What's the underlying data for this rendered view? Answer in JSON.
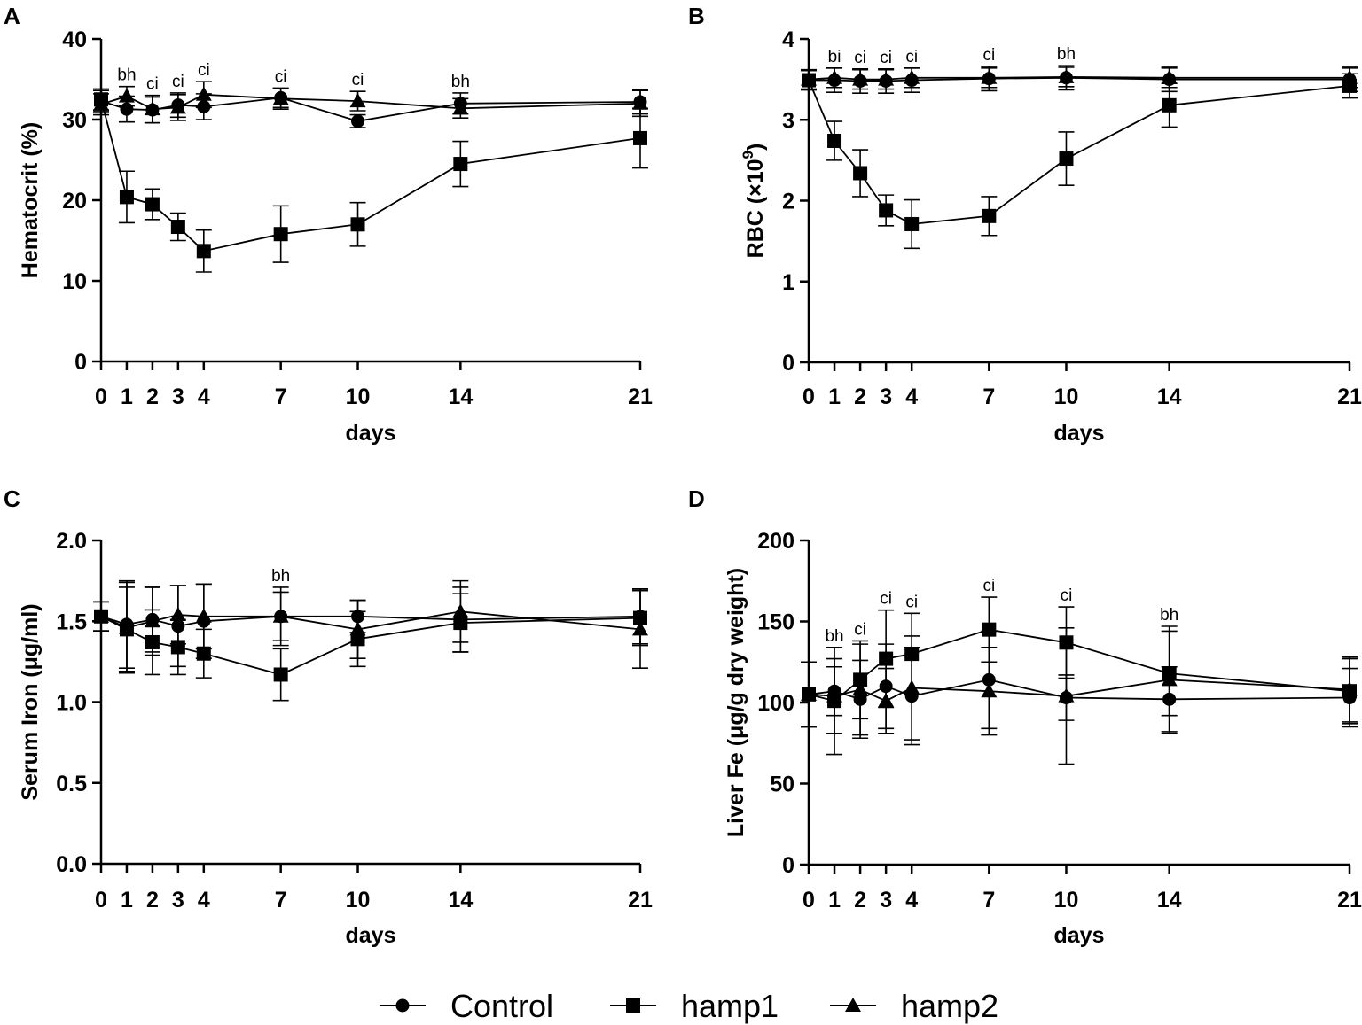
{
  "legend": [
    {
      "name": "Control",
      "marker": "circle"
    },
    {
      "name": "hamp1",
      "marker": "square"
    },
    {
      "name": "hamp2",
      "marker": "triangle"
    }
  ],
  "chart_data": [
    {
      "type": "line",
      "panel": "A",
      "xlabel": "days",
      "ylabel": "Hematocrit (%)",
      "ylim": [
        0,
        40
      ],
      "yticks": [
        "0",
        "10",
        "20",
        "30",
        "40"
      ],
      "x": [
        0,
        1,
        2,
        3,
        4,
        7,
        10,
        14,
        21
      ],
      "xticks": [
        "0",
        "1",
        "2",
        "3",
        "4",
        "7",
        "10",
        "14",
        "21"
      ],
      "series": [
        {
          "name": "Control",
          "marker": "circle",
          "values": [
            32.3,
            31.3,
            31.2,
            31.8,
            31.6,
            32.7,
            29.8,
            32.0,
            32.2
          ],
          "errors": [
            1.3,
            1.6,
            1.6,
            1.5,
            1.6,
            1.2,
            0.8,
            1.3,
            1.5
          ]
        },
        {
          "name": "hamp1",
          "marker": "square",
          "values": [
            32.5,
            20.4,
            19.5,
            16.7,
            13.7,
            15.8,
            17.0,
            24.5,
            27.7
          ],
          "errors": [
            1.3,
            3.2,
            1.9,
            1.7,
            2.6,
            3.5,
            2.7,
            2.8,
            3.7
          ]
        },
        {
          "name": "hamp2",
          "marker": "triangle",
          "values": [
            31.9,
            32.9,
            31.3,
            31.5,
            33.1,
            32.6,
            32.3,
            31.4,
            32.0
          ],
          "errors": [
            1.3,
            1.2,
            1.7,
            1.6,
            1.6,
            1.3,
            1.2,
            1.2,
            1.6
          ]
        }
      ],
      "annotations": [
        {
          "x": 1,
          "text": "bh"
        },
        {
          "x": 2,
          "text": "ci"
        },
        {
          "x": 3,
          "text": "ci"
        },
        {
          "x": 4,
          "text": "ci"
        },
        {
          "x": 7,
          "text": "ci"
        },
        {
          "x": 10,
          "text": "ci"
        },
        {
          "x": 14,
          "text": "bh"
        }
      ]
    },
    {
      "type": "line",
      "panel": "B",
      "xlabel": "days",
      "ylabel": "RBC (×10⁹)",
      "ylabel_parts": [
        "RBC (×10",
        "9",
        ")"
      ],
      "ylim": [
        0,
        4
      ],
      "yticks": [
        "0",
        "1",
        "2",
        "3",
        "4"
      ],
      "x": [
        0,
        1,
        2,
        3,
        4,
        7,
        10,
        14,
        21
      ],
      "xticks": [
        "0",
        "1",
        "2",
        "3",
        "4",
        "7",
        "10",
        "14",
        "21"
      ],
      "series": [
        {
          "name": "Control",
          "marker": "circle",
          "values": [
            3.49,
            3.49,
            3.48,
            3.48,
            3.49,
            3.51,
            3.52,
            3.5,
            3.5
          ],
          "errors": [
            0.12,
            0.15,
            0.15,
            0.15,
            0.15,
            0.15,
            0.15,
            0.15,
            0.15
          ]
        },
        {
          "name": "hamp1",
          "marker": "square",
          "values": [
            3.49,
            2.74,
            2.34,
            1.88,
            1.71,
            1.81,
            2.52,
            3.18,
            3.42
          ],
          "errors": [
            0.12,
            0.24,
            0.29,
            0.19,
            0.3,
            0.24,
            0.33,
            0.27,
            0.15
          ]
        },
        {
          "name": "hamp2",
          "marker": "triangle",
          "values": [
            3.5,
            3.52,
            3.5,
            3.5,
            3.52,
            3.52,
            3.53,
            3.52,
            3.52
          ],
          "errors": [
            0.12,
            0.12,
            0.12,
            0.12,
            0.12,
            0.12,
            0.12,
            0.12,
            0.12
          ]
        }
      ],
      "annotations": [
        {
          "x": 1,
          "text": "bi"
        },
        {
          "x": 2,
          "text": "ci"
        },
        {
          "x": 3,
          "text": "ci"
        },
        {
          "x": 4,
          "text": "ci"
        },
        {
          "x": 7,
          "text": "ci"
        },
        {
          "x": 10,
          "text": "bh"
        }
      ]
    },
    {
      "type": "line",
      "panel": "C",
      "xlabel": "days",
      "ylabel": "Serum Iron (μg/ml)",
      "ylim": [
        0,
        2
      ],
      "yticks": [
        "0.0",
        "0.5",
        "1.0",
        "1.5",
        "2.0"
      ],
      "x": [
        0,
        1,
        2,
        3,
        4,
        7,
        10,
        14,
        21
      ],
      "xticks": [
        "0",
        "1",
        "2",
        "3",
        "4",
        "7",
        "10",
        "14",
        "21"
      ],
      "series": [
        {
          "name": "Control",
          "marker": "circle",
          "values": [
            1.53,
            1.48,
            1.51,
            1.47,
            1.5,
            1.53,
            1.53,
            1.51,
            1.53
          ],
          "errors": [
            0.09,
            0.27,
            0.2,
            0.25,
            0.23,
            0.18,
            0.1,
            0.2,
            0.17
          ]
        },
        {
          "name": "hamp1",
          "marker": "square",
          "values": [
            1.53,
            1.45,
            1.37,
            1.34,
            1.3,
            1.17,
            1.39,
            1.49,
            1.52
          ],
          "errors": [
            0.09,
            0.26,
            0.2,
            0.17,
            0.15,
            0.16,
            0.17,
            0.18,
            0.17
          ]
        },
        {
          "name": "hamp2",
          "marker": "triangle",
          "values": [
            1.53,
            1.46,
            1.5,
            1.54,
            1.53,
            1.53,
            1.45,
            1.56,
            1.45
          ],
          "errors": [
            0.09,
            0.28,
            0.21,
            0.18,
            0.2,
            0.15,
            0.18,
            0.19,
            0.24
          ]
        }
      ],
      "annotations": [
        {
          "x": 7,
          "text": "bh"
        }
      ]
    },
    {
      "type": "line",
      "panel": "D",
      "xlabel": "days",
      "ylabel": "Liver Fe (μg/g dry weight)",
      "ylim": [
        0,
        200
      ],
      "yticks": [
        "0",
        "50",
        "100",
        "150",
        "200"
      ],
      "x": [
        0,
        1,
        2,
        3,
        4,
        7,
        10,
        14,
        21
      ],
      "xticks": [
        "0",
        "1",
        "2",
        "3",
        "4",
        "7",
        "10",
        "14",
        "21"
      ],
      "series": [
        {
          "name": "Control",
          "marker": "circle",
          "values": [
            105,
            107,
            102,
            110,
            104,
            114,
            103,
            102,
            103
          ],
          "errors": [
            20,
            15,
            24,
            26,
            30,
            30,
            14,
            20,
            18
          ]
        },
        {
          "name": "hamp1",
          "marker": "square",
          "values": [
            105,
            101,
            114,
            127,
            130,
            145,
            137,
            118,
            107
          ],
          "errors": [
            20,
            33,
            24,
            30,
            25,
            20,
            22,
            26,
            20
          ]
        },
        {
          "name": "hamp2",
          "marker": "triangle",
          "values": [
            105,
            104,
            108,
            101,
            109,
            107,
            104,
            114,
            108
          ],
          "errors": [
            20,
            23,
            28,
            20,
            32,
            27,
            42,
            33,
            20
          ]
        }
      ],
      "annotations": [
        {
          "x": 1,
          "text": "bh"
        },
        {
          "x": 2,
          "text": "ci"
        },
        {
          "x": 3,
          "text": "ci"
        },
        {
          "x": 4,
          "text": "ci"
        },
        {
          "x": 7,
          "text": "ci"
        },
        {
          "x": 10,
          "text": "ci"
        },
        {
          "x": 14,
          "text": "bh"
        }
      ]
    }
  ]
}
